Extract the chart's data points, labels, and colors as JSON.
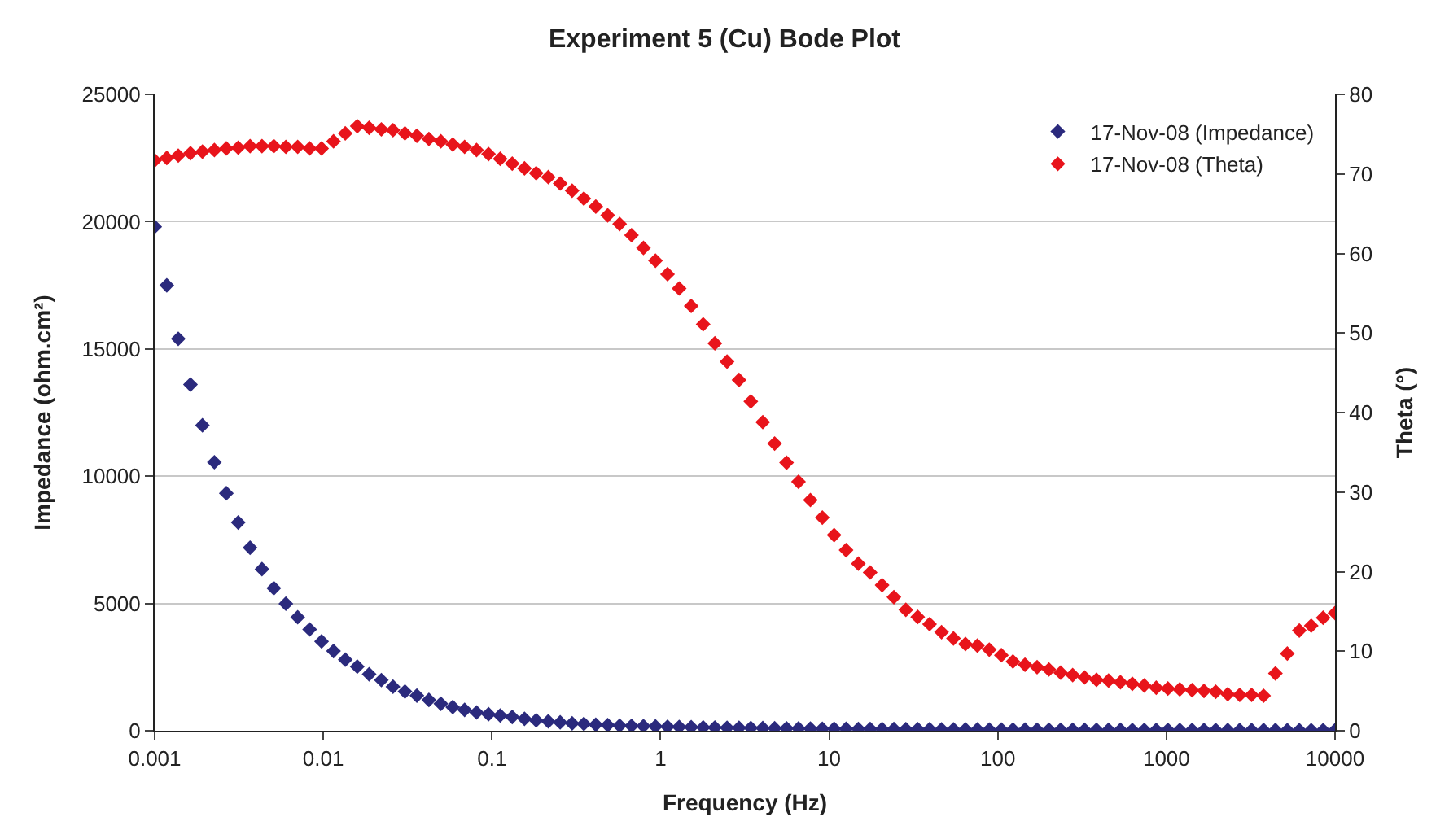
{
  "chart_data": {
    "type": "scatter",
    "title": "Experiment 5 (Cu) Bode Plot",
    "xlabel": "Frequency (Hz)",
    "ylabel": "Impedance (ohm.cm²)",
    "y2label": "Theta (°)",
    "x": [
      0.001,
      0.00118,
      0.00138,
      0.00163,
      0.00192,
      0.00226,
      0.00266,
      0.00313,
      0.00368,
      0.00433,
      0.00509,
      0.006,
      0.00705,
      0.0083,
      0.00977,
      0.0115,
      0.0135,
      0.0159,
      0.0187,
      0.0221,
      0.0259,
      0.0305,
      0.0359,
      0.0423,
      0.0498,
      0.0586,
      0.0689,
      0.0811,
      0.0955,
      0.112,
      0.132,
      0.156,
      0.183,
      0.216,
      0.254,
      0.299,
      0.351,
      0.413,
      0.486,
      0.572,
      0.673,
      0.792,
      0.933,
      1.1,
      1.29,
      1.52,
      1.79,
      2.1,
      2.48,
      2.92,
      3.43,
      4.04,
      4.75,
      5.59,
      6.58,
      7.74,
      9.11,
      10.7,
      12.6,
      14.9,
      17.5,
      20.6,
      24.2,
      28.5,
      33.5,
      39.4,
      46.4,
      54.6,
      64.3,
      75.7,
      89,
      105,
      123,
      145,
      171,
      201,
      236,
      278,
      327,
      385,
      454,
      534,
      628,
      739,
      870,
      1020,
      1200,
      1420,
      1670,
      1960,
      2310,
      2720,
      3200,
      3770,
      4430,
      5210,
      6140,
      7220,
      8500,
      10000
    ],
    "series": [
      {
        "name": "17-Nov-08 (Impedance)",
        "color": "#2b2a7d",
        "values": [
          19800,
          17500,
          15400,
          13600,
          12000,
          10550,
          9330,
          8180,
          7190,
          6350,
          5600,
          4990,
          4460,
          3980,
          3510,
          3130,
          2790,
          2520,
          2220,
          1990,
          1730,
          1540,
          1380,
          1210,
          1060,
          930,
          820,
          720,
          650,
          600,
          540,
          470,
          410,
          370,
          330,
          290,
          270,
          240,
          220,
          200,
          190,
          180,
          170,
          160,
          150,
          140,
          130,
          125,
          120,
          115,
          110,
          105,
          100,
          95,
          90,
          85,
          80,
          78,
          75,
          72,
          70,
          68,
          65,
          62,
          60,
          58,
          56,
          54,
          52,
          50,
          48,
          46,
          44,
          42,
          40,
          39,
          38,
          37,
          36,
          35,
          34,
          33,
          32,
          31,
          30,
          30,
          29,
          28,
          28,
          27,
          27,
          26,
          26,
          25,
          25,
          24,
          24,
          23,
          23,
          22
        ]
      },
      {
        "name": "17-Nov-08 (Theta)",
        "color": "#e8141b",
        "axis": "y2",
        "values": [
          71.7,
          72.0,
          72.3,
          72.6,
          72.8,
          73.0,
          73.2,
          73.3,
          73.5,
          73.5,
          73.5,
          73.4,
          73.4,
          73.2,
          73.2,
          74.1,
          75.1,
          76.0,
          75.8,
          75.6,
          75.5,
          75.1,
          74.8,
          74.4,
          74.1,
          73.7,
          73.4,
          73.0,
          72.5,
          71.9,
          71.3,
          70.7,
          70.1,
          69.6,
          68.8,
          67.9,
          66.9,
          65.9,
          64.8,
          63.7,
          62.3,
          60.7,
          59.1,
          57.4,
          55.6,
          53.4,
          51.1,
          48.7,
          46.4,
          44.1,
          41.4,
          38.8,
          36.1,
          33.7,
          31.3,
          29.0,
          26.8,
          24.6,
          22.7,
          21.0,
          19.9,
          18.3,
          16.8,
          15.2,
          14.3,
          13.4,
          12.4,
          11.6,
          10.9,
          10.7,
          10.2,
          9.5,
          8.7,
          8.3,
          8.0,
          7.7,
          7.3,
          7.0,
          6.7,
          6.4,
          6.3,
          6.1,
          5.9,
          5.7,
          5.4,
          5.3,
          5.2,
          5.1,
          5.0,
          4.9,
          4.6,
          4.5,
          4.5,
          4.4,
          7.2,
          9.7,
          12.6,
          13.2,
          14.2,
          14.8
        ]
      }
    ],
    "log": "x",
    "xlim": [
      0.001,
      10000
    ],
    "xticks": [
      0.001,
      0.01,
      0.1,
      1,
      10,
      100,
      1000,
      10000
    ],
    "ylim": [
      0,
      25000
    ],
    "yticks": [
      0,
      5000,
      10000,
      15000,
      20000,
      25000
    ],
    "y2lim": [
      0,
      80
    ],
    "y2ticks": [
      0,
      10,
      20,
      30,
      40,
      50,
      60,
      70,
      80
    ],
    "grid": "y",
    "legend": "top right",
    "marker": "diamond"
  }
}
